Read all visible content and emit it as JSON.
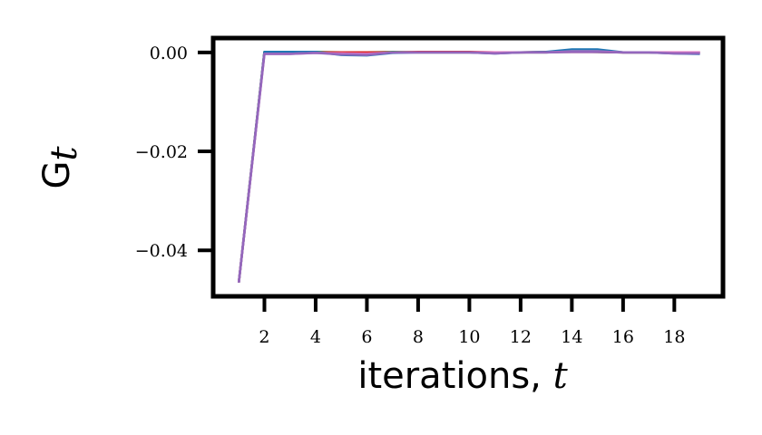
{
  "chart_data": {
    "type": "line",
    "title": "",
    "xlabel": "iterations, ",
    "xlabel_var": "t",
    "ylabel": "G",
    "ylabel_sub": "t",
    "xlim": [
      0.0,
      19.9
    ],
    "ylim": [
      -0.0493,
      0.0029
    ],
    "xticks": [
      2,
      4,
      6,
      8,
      10,
      12,
      14,
      16,
      18
    ],
    "xtick_labels": [
      "2",
      "4",
      "6",
      "8",
      "10",
      "12",
      "14",
      "16",
      "18"
    ],
    "yticks": [
      0.0,
      -0.02,
      -0.04
    ],
    "ytick_labels": [
      "0.00",
      "−0.02",
      "−0.04"
    ],
    "grid": false,
    "legend": "none",
    "x": [
      1,
      2,
      3,
      4,
      5,
      6,
      7,
      8,
      9,
      10,
      11,
      12,
      13,
      14,
      15,
      16,
      17,
      18,
      19
    ],
    "series": [
      {
        "color": "#2ca02c",
        "values": [
          -0.0465,
          0.0001,
          0.0001,
          0.0001,
          0.0,
          0.0,
          0.0001,
          0.0,
          0.0,
          0.0,
          0.0,
          0.0,
          0.0,
          0.0002,
          0.0001,
          0.0,
          0.0,
          0.0,
          0.0
        ]
      },
      {
        "color": "#d62728",
        "values": [
          -0.0465,
          0.0,
          0.0,
          0.0,
          0.0,
          0.0,
          0.0,
          0.0001,
          0.0001,
          0.0001,
          0.0,
          0.0,
          0.0001,
          0.0001,
          0.0001,
          0.0,
          0.0,
          0.0,
          0.0
        ]
      },
      {
        "color": "#1f77b4",
        "values": [
          -0.0465,
          0.0001,
          0.0001,
          0.0001,
          -0.0005,
          -0.0006,
          -0.0001,
          0.0,
          0.0,
          0.0,
          -0.0002,
          0.0,
          0.0001,
          0.0006,
          0.0006,
          0.0,
          0.0,
          -0.0002,
          -0.0003
        ]
      },
      {
        "color": "#e377c2",
        "values": [
          -0.0465,
          -0.0003,
          -0.0003,
          -0.0001,
          -0.0002,
          -0.0003,
          0.0,
          0.0,
          0.0,
          0.0,
          0.0,
          0.0,
          0.0,
          0.0002,
          0.0002,
          0.0,
          0.0,
          0.0,
          0.0
        ]
      },
      {
        "color": "#9467bd",
        "values": [
          -0.0465,
          -0.0003,
          -0.0003,
          -0.0001,
          -0.0004,
          -0.0005,
          0.0,
          0.0,
          0.0,
          0.0,
          -0.0002,
          0.0,
          0.0,
          0.0001,
          0.0001,
          0.0,
          0.0,
          -0.0002,
          -0.0002
        ]
      }
    ]
  }
}
